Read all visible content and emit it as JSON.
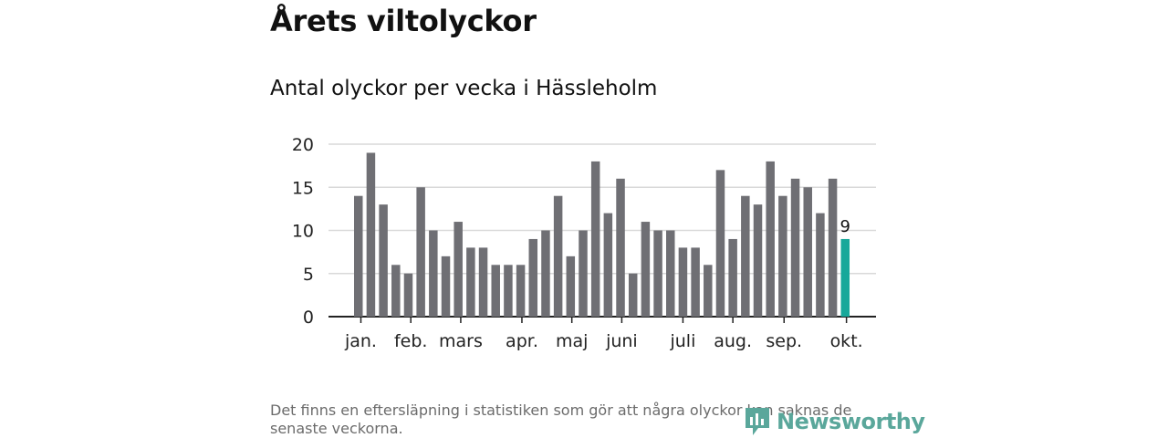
{
  "header": {
    "title": "Årets viltolyckor",
    "subtitle": "Antal olyckor per vecka i Hässleholm"
  },
  "footer": {
    "note": "Det finns en eftersläpning i statistiken som gör att några olyckor kan saknas de senaste veckorna.",
    "brand": "Newsworthy"
  },
  "colors": {
    "bar": "#6f6f74",
    "highlight": "#17a89a",
    "grid": "#d9d9d9",
    "axis": "#222222",
    "brand": "#5aa79b"
  },
  "chart_data": {
    "type": "bar",
    "title": "Antal olyckor per vecka i Hässleholm",
    "xlabel": "",
    "ylabel": "",
    "ylim": [
      0,
      20
    ],
    "yticks": [
      0,
      5,
      10,
      15,
      20
    ],
    "grid": true,
    "weeks": [
      1,
      2,
      3,
      4,
      5,
      6,
      7,
      8,
      9,
      10,
      11,
      12,
      13,
      14,
      15,
      16,
      17,
      18,
      19,
      20,
      21,
      22,
      23,
      24,
      25,
      26,
      27,
      28,
      29,
      30,
      31,
      32,
      33,
      34,
      35,
      36,
      37,
      38,
      39,
      40
    ],
    "values": [
      14,
      19,
      13,
      6,
      5,
      15,
      10,
      7,
      11,
      8,
      8,
      6,
      6,
      6,
      9,
      10,
      14,
      7,
      10,
      18,
      12,
      16,
      5,
      11,
      10,
      10,
      8,
      8,
      6,
      17,
      9,
      14,
      13,
      18,
      14,
      16,
      15,
      12,
      16,
      9
    ],
    "highlight_index": 39,
    "highlight_label": "9",
    "month_ticks": [
      {
        "label": "jan.",
        "pos": 0.2
      },
      {
        "label": "feb.",
        "pos": 4.2
      },
      {
        "label": "mars",
        "pos": 8.2
      },
      {
        "label": "apr.",
        "pos": 13.1
      },
      {
        "label": "maj",
        "pos": 17.1
      },
      {
        "label": "juni",
        "pos": 21.1
      },
      {
        "label": "juli",
        "pos": 26.0
      },
      {
        "label": "aug.",
        "pos": 30.0
      },
      {
        "label": "sep.",
        "pos": 34.1
      },
      {
        "label": "okt.",
        "pos": 39.1
      }
    ]
  }
}
